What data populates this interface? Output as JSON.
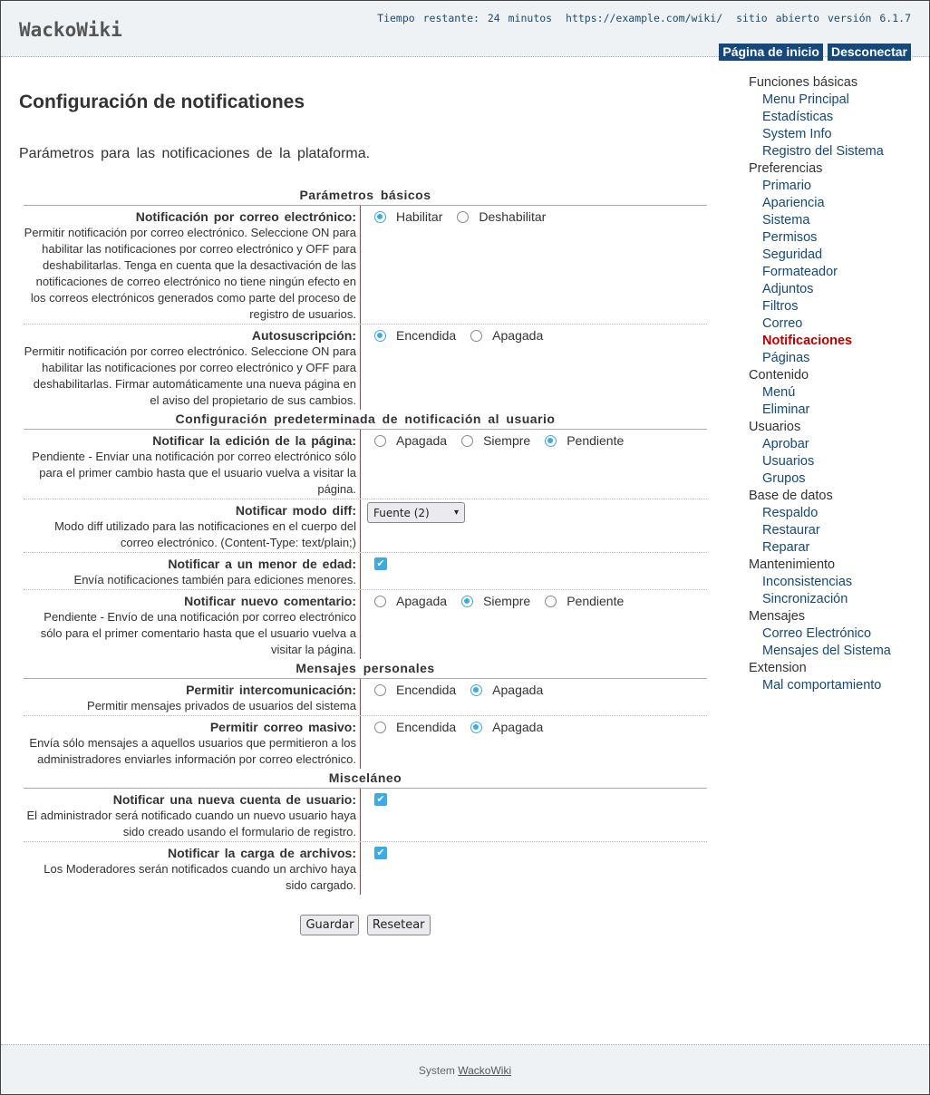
{
  "header": {
    "logo": "WackoWiki",
    "time_left": "Tiempo restante: 24 minutos",
    "url": "https://example.com/wiki/",
    "site_status": "sitio abierto versión 6.1.7",
    "nav": [
      "Página de inicio",
      "Desconectar"
    ]
  },
  "page": {
    "title": "Configuración de notificationes",
    "intro": "Parámetros para las notificaciones de la plataforma."
  },
  "sections": [
    {
      "title": "Parámetros básicos",
      "rows": [
        {
          "label": "Notificación por correo electrónico:",
          "desc": "Permitir notificación por correo electrónico. Seleccione ON para habilitar las notificaciones por correo electrónico y OFF para deshabilitarlas. Tenga en cuenta que la desactivación de las notificaciones de correo electrónico no tiene ningún efecto en los correos electrónicos generados como parte del proceso de registro de usuarios.",
          "type": "radio",
          "options": [
            "Habilitar",
            "Deshabilitar"
          ],
          "selected": 0
        },
        {
          "label": "Autosuscripción:",
          "desc": "Permitir notificación por correo electrónico. Seleccione ON para habilitar las notificaciones por correo electrónico y OFF para deshabilitarlas. Firmar automáticamente una nueva página en el aviso del propietario de sus cambios.",
          "type": "radio",
          "options": [
            "Encendida",
            "Apagada"
          ],
          "selected": 0
        }
      ]
    },
    {
      "title": "Configuración predeterminada de notificación al usuario",
      "rows": [
        {
          "label": "Notificar la edición de la página:",
          "desc": "Pendiente - Enviar una notificación por correo electrónico sólo para el primer cambio hasta que el usuario vuelva a visitar la página.",
          "type": "radio",
          "options": [
            "Apagada",
            "Siempre",
            "Pendiente"
          ],
          "selected": 2
        },
        {
          "label": "Notificar modo diff:",
          "desc": "Modo diff utilizado para las notificaciones en el cuerpo del correo electrónico. (Content-Type: text/plain;)",
          "type": "select",
          "value": "Fuente (2)"
        },
        {
          "label": "Notificar a un menor de edad:",
          "desc": "Envía notificaciones también para ediciones menores.",
          "type": "check",
          "checked": true
        },
        {
          "label": "Notificar nuevo comentario:",
          "desc": "Pendiente - Envío de una notificación por correo electrónico sólo para el primer comentario hasta que el usuario vuelva a visitar la página.",
          "type": "radio",
          "options": [
            "Apagada",
            "Siempre",
            "Pendiente"
          ],
          "selected": 1
        }
      ]
    },
    {
      "title": "Mensajes personales",
      "rows": [
        {
          "label": "Permitir intercomunicación:",
          "desc": "Permitir mensajes privados de usuarios del sistema",
          "type": "radio",
          "options": [
            "Encendida",
            "Apagada"
          ],
          "selected": 1
        },
        {
          "label": "Permitir correo masivo:",
          "desc": "Envía sólo mensajes a aquellos usuarios que permitieron a los administradores enviarles información por correo electrónico.",
          "type": "radio",
          "options": [
            "Encendida",
            "Apagada"
          ],
          "selected": 1
        }
      ]
    },
    {
      "title": "Misceláneo",
      "rows": [
        {
          "label": "Notificar una nueva cuenta de usuario:",
          "desc": "El administrador será notificado cuando un nuevo usuario haya sido creado usando el formulario de registro.",
          "type": "check",
          "checked": true
        },
        {
          "label": "Notificar la carga de archivos:",
          "desc": "Los Moderadores serán notificados cuando un archivo haya sido cargado.",
          "type": "check",
          "checked": true
        }
      ]
    }
  ],
  "buttons": {
    "save": "Guardar",
    "reset": "Resetear"
  },
  "sidebar": [
    {
      "group": "Funciones básicas",
      "items": [
        "Menu Principal",
        "Estadísticas",
        "System Info",
        "Registro del Sistema"
      ]
    },
    {
      "group": "Preferencias",
      "items": [
        "Primario",
        "Apariencia",
        "Sistema",
        "Permisos",
        "Seguridad",
        "Formateador",
        "Adjuntos",
        "Filtros",
        "Correo",
        "Notificaciones",
        "Páginas"
      ]
    },
    {
      "group": "Contenido",
      "items": [
        "Menú",
        "Eliminar"
      ]
    },
    {
      "group": "Usuarios",
      "items": [
        "Aprobar",
        "Usuarios",
        "Grupos"
      ]
    },
    {
      "group": "Base de datos",
      "items": [
        "Respaldo",
        "Restaurar",
        "Reparar"
      ]
    },
    {
      "group": "Mantenimiento",
      "items": [
        "Inconsistencias",
        "Sincronización"
      ]
    },
    {
      "group": "Mensajes",
      "items": [
        "Correo Electrónico",
        "Mensajes del Sistema"
      ]
    },
    {
      "group": "Extension",
      "items": [
        "Mal comportamiento"
      ]
    }
  ],
  "sidebar_active": "Notificaciones",
  "footer": {
    "prefix": "System",
    "link": "WackoWiki"
  },
  "colors": {
    "accent": "#15497b",
    "active": "#bb0000",
    "control": "#3da9e5"
  }
}
